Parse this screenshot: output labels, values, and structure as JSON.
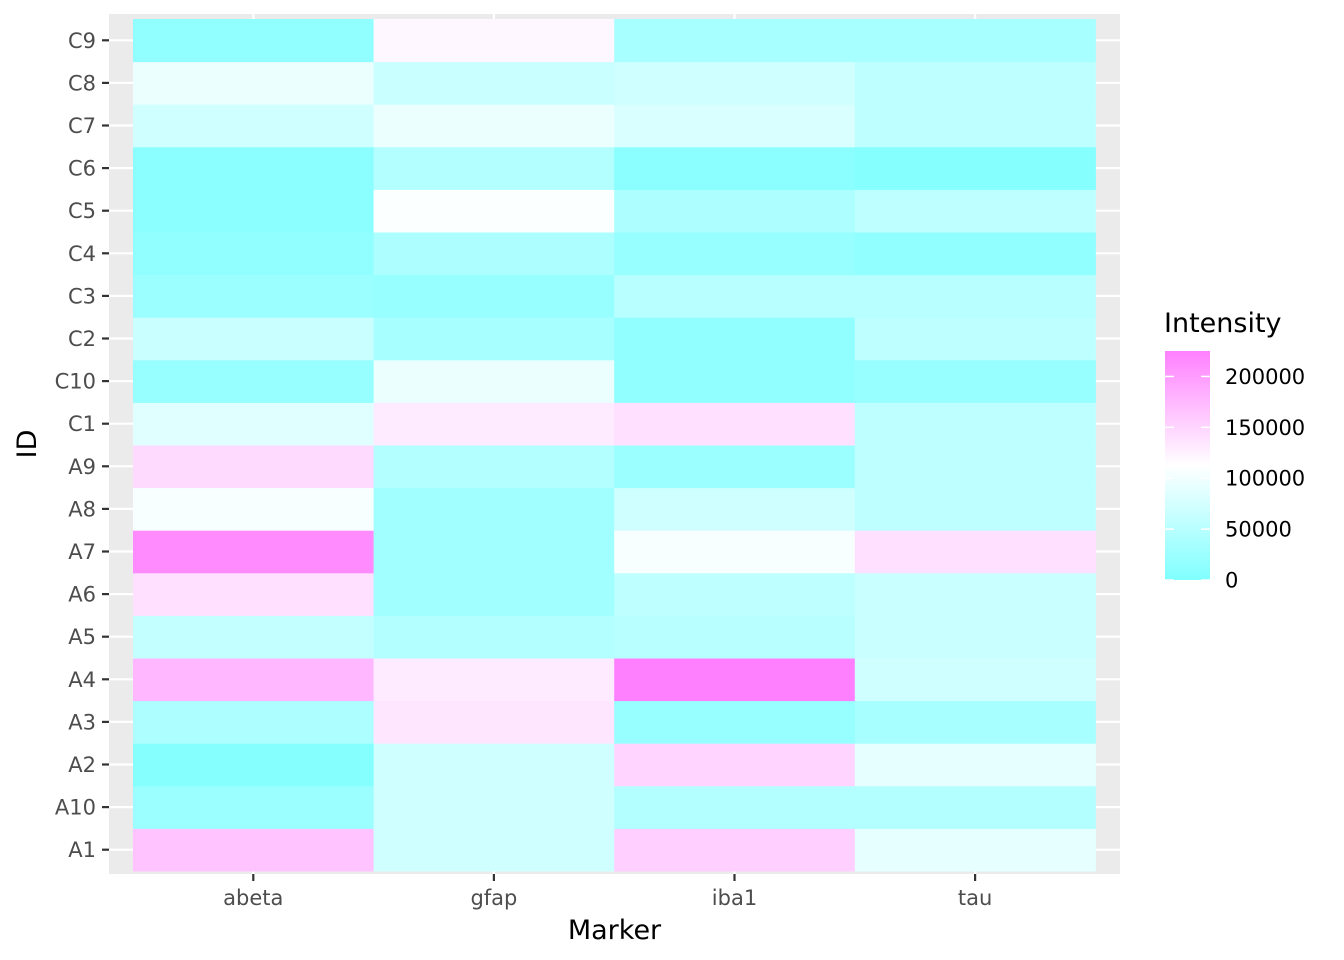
{
  "chart_data": {
    "type": "heatmap",
    "title": "",
    "xlabel": "Marker",
    "ylabel": "ID",
    "x_categories": [
      "abeta",
      "gfap",
      "iba1",
      "tau"
    ],
    "y_categories": [
      "A1",
      "A10",
      "A2",
      "A3",
      "A4",
      "A5",
      "A6",
      "A7",
      "A8",
      "A9",
      "C1",
      "C10",
      "C2",
      "C3",
      "C4",
      "C5",
      "C6",
      "C7",
      "C8",
      "C9"
    ],
    "values": [
      [
        165000,
        70000,
        155000,
        90000
      ],
      [
        25000,
        70000,
        45000,
        45000
      ],
      [
        5000,
        70000,
        150000,
        90000
      ],
      [
        40000,
        135000,
        20000,
        35000
      ],
      [
        175000,
        130000,
        225000,
        70000
      ],
      [
        60000,
        45000,
        50000,
        65000
      ],
      [
        140000,
        30000,
        55000,
        65000
      ],
      [
        215000,
        30000,
        105000,
        140000
      ],
      [
        105000,
        30000,
        70000,
        55000
      ],
      [
        145000,
        45000,
        25000,
        55000
      ],
      [
        85000,
        130000,
        140000,
        55000
      ],
      [
        20000,
        95000,
        15000,
        20000
      ],
      [
        65000,
        35000,
        15000,
        55000
      ],
      [
        25000,
        20000,
        50000,
        50000
      ],
      [
        15000,
        40000,
        20000,
        15000
      ],
      [
        10000,
        110000,
        40000,
        55000
      ],
      [
        10000,
        45000,
        10000,
        5000
      ],
      [
        70000,
        95000,
        80000,
        55000
      ],
      [
        95000,
        65000,
        70000,
        55000
      ],
      [
        15000,
        120000,
        35000,
        35000
      ]
    ],
    "legend": {
      "title": "Intensity",
      "placement": "right",
      "min": 0,
      "max": 225000,
      "ticks": [
        0,
        50000,
        100000,
        150000,
        200000
      ],
      "tick_labels": [
        "0",
        "50000",
        "100000",
        "150000",
        "200000"
      ],
      "colors": {
        "low": "#80ffff",
        "mid": "#ffffff",
        "high": "#ff80ff",
        "midpoint": 112500
      }
    },
    "panel_background": "#ebebeb",
    "grid": true
  }
}
